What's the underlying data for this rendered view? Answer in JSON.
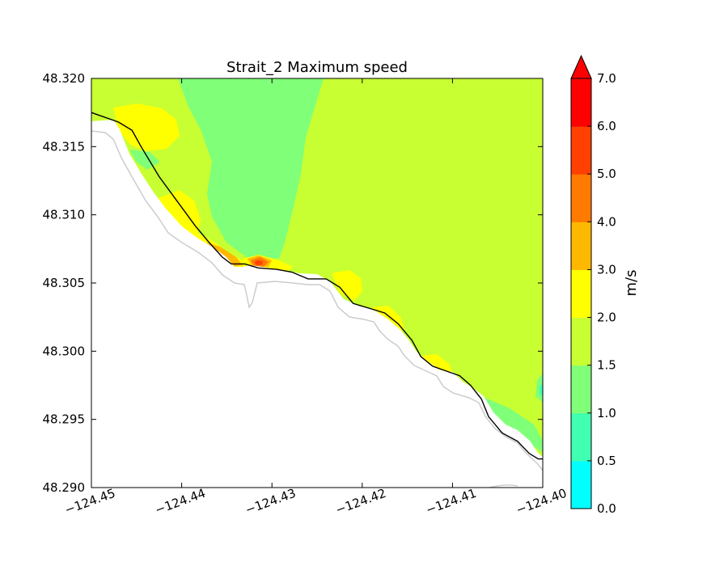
{
  "chart_data": {
    "type": "heatmap",
    "title": "Strait_2 Maximum speed",
    "xlim": [
      -124.45,
      -124.4
    ],
    "ylim": [
      48.29,
      48.32
    ],
    "x_ticks": [
      "−124.45",
      "−124.44",
      "−124.43",
      "−124.42",
      "−124.41",
      "−124.40"
    ],
    "x_tick_values": [
      -124.45,
      -124.44,
      -124.43,
      -124.42,
      -124.41,
      -124.4
    ],
    "y_ticks": [
      "48.290",
      "48.295",
      "48.300",
      "48.305",
      "48.310",
      "48.315",
      "48.320"
    ],
    "y_tick_values": [
      48.29,
      48.295,
      48.3,
      48.305,
      48.31,
      48.315,
      48.32
    ],
    "colorbar": {
      "label": "m/s",
      "levels": [
        0.0,
        0.5,
        1.0,
        1.5,
        2.0,
        3.0,
        4.0,
        5.0,
        6.0,
        7.0
      ],
      "level_labels": [
        "0.0",
        "0.5",
        "1.0",
        "1.5",
        "2.0",
        "3.0",
        "4.0",
        "5.0",
        "6.0",
        "7.0"
      ],
      "colors": [
        "#00ffff",
        "#40ffb0",
        "#80ff78",
        "#c8ff32",
        "#ffff00",
        "#ffb800",
        "#ff7a00",
        "#ff4000",
        "#ff0000"
      ],
      "extend": "max"
    },
    "coastline": [
      [
        -124.45,
        48.3175
      ],
      [
        -124.447,
        48.3168
      ],
      [
        -124.4455,
        48.3162
      ],
      [
        -124.4445,
        48.315
      ],
      [
        -124.4425,
        48.3128
      ],
      [
        -124.4405,
        48.311
      ],
      [
        -124.4385,
        48.3092
      ],
      [
        -124.437,
        48.308
      ],
      [
        -124.4355,
        48.3069
      ],
      [
        -124.4345,
        48.3064
      ],
      [
        -124.433,
        48.3064
      ],
      [
        -124.4315,
        48.3061
      ],
      [
        -124.4295,
        48.306
      ],
      [
        -124.4278,
        48.3058
      ],
      [
        -124.426,
        48.3053
      ],
      [
        -124.424,
        48.3053
      ],
      [
        -124.4225,
        48.3047
      ],
      [
        -124.421,
        48.3035
      ],
      [
        -124.419,
        48.3031
      ],
      [
        -124.4175,
        48.3028
      ],
      [
        -124.416,
        48.302
      ],
      [
        -124.4145,
        48.3008
      ],
      [
        -124.4135,
        48.2996
      ],
      [
        -124.4122,
        48.2989
      ],
      [
        -124.4105,
        48.2985
      ],
      [
        -124.4092,
        48.2982
      ],
      [
        -124.408,
        48.2975
      ],
      [
        -124.4068,
        48.2965
      ],
      [
        -124.406,
        48.2952
      ],
      [
        -124.4045,
        48.294
      ],
      [
        -124.4028,
        48.2934
      ],
      [
        -124.4015,
        48.2925
      ],
      [
        -124.4005,
        48.2921
      ],
      [
        -124.4,
        48.2921
      ]
    ]
  }
}
